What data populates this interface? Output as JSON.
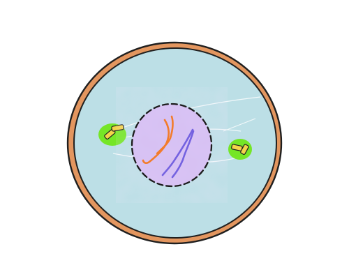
{
  "colors": {
    "background": "#ffffff",
    "cell_membrane": "#e3965f",
    "cell_membrane_outline": "#1f1f1f",
    "cytoplasm": "#bcdfe6",
    "nucleus_fill": "#d9c4f4",
    "nucleus_outline": "#1c1c1c",
    "chromosome_orange": "#f27c2b",
    "chromosome_purple": "#7462e0",
    "centrosome_halo": "#71e61c",
    "centriole_fill": "#f3d44a",
    "centriole_outline": "#1f1f1f",
    "spindle_fibers": "#ffffff"
  },
  "icons": {
    "cell": "cell-icon",
    "nucleus": "nucleus-icon",
    "centrosome": "centrosome-icon",
    "centriole": "centriole-icon",
    "chromosome": "chromosome-icon"
  }
}
